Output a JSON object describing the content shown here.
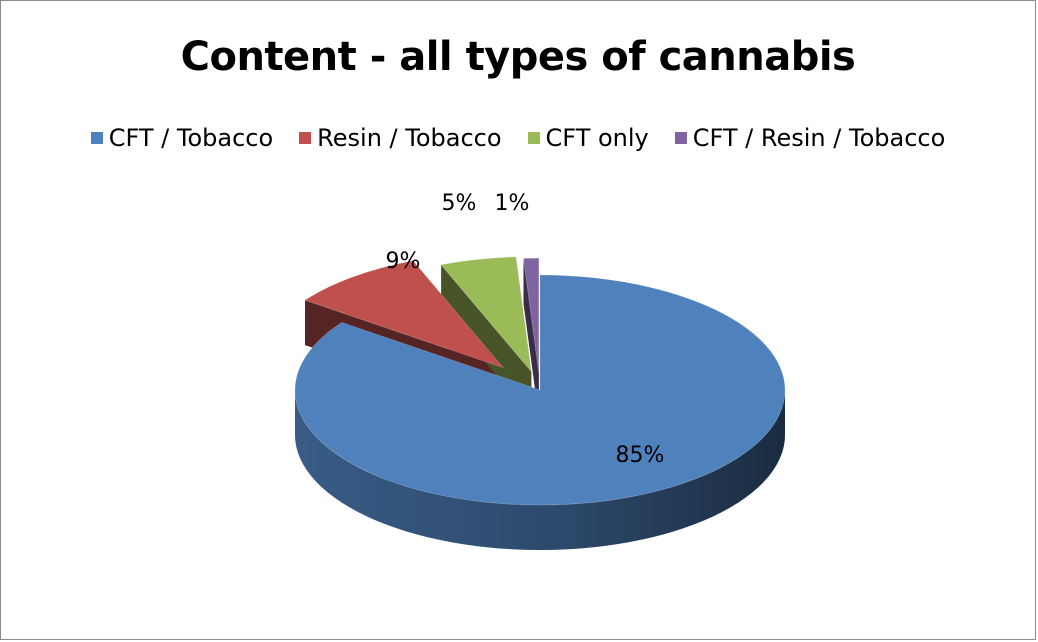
{
  "chart_data": {
    "type": "pie",
    "title": "Content - all types of cannabis",
    "legend_position": "top",
    "slices": [
      {
        "name": "CFT / Tobacco",
        "value": 85,
        "label": "85%",
        "color": "#4f81bd"
      },
      {
        "name": "Resin / Tobacco",
        "value": 9,
        "label": "9%",
        "color": "#c0504d"
      },
      {
        "name": "CFT only",
        "value": 5,
        "label": "5%",
        "color": "#9bbb59"
      },
      {
        "name": "CFT / Resin / Tobacco",
        "value": 1,
        "label": "1%",
        "color": "#8064a2"
      }
    ]
  }
}
